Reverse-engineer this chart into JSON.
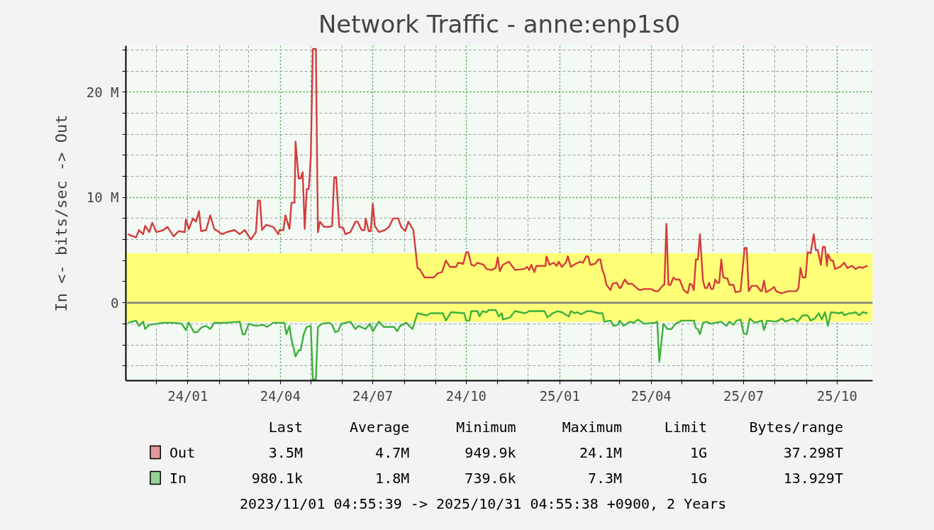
{
  "chart_data": {
    "type": "line",
    "title": "Network Traffic - anne:enp1s0",
    "ylabel": "In <- bits/sec -> Out",
    "xlim": [
      "2023-11-01",
      "2025-11-05"
    ],
    "ylim": [
      -7.4,
      24.4
    ],
    "xticks": [
      {
        "value": "2023-12-01",
        "label": null
      },
      {
        "value": "2024-01-01",
        "label": "24/01"
      },
      {
        "value": "2024-02-01",
        "label": null
      },
      {
        "value": "2024-03-01",
        "label": null
      },
      {
        "value": "2024-04-01",
        "label": "24/04"
      },
      {
        "value": "2024-05-01",
        "label": null
      },
      {
        "value": "2024-06-01",
        "label": null
      },
      {
        "value": "2024-07-01",
        "label": "24/07"
      },
      {
        "value": "2024-08-01",
        "label": null
      },
      {
        "value": "2024-09-01",
        "label": null
      },
      {
        "value": "2024-10-01",
        "label": "24/10"
      },
      {
        "value": "2024-11-01",
        "label": null
      },
      {
        "value": "2024-12-01",
        "label": null
      },
      {
        "value": "2025-01-01",
        "label": "25/01"
      },
      {
        "value": "2025-02-01",
        "label": null
      },
      {
        "value": "2025-03-01",
        "label": null
      },
      {
        "value": "2025-04-01",
        "label": "25/04"
      },
      {
        "value": "2025-05-01",
        "label": null
      },
      {
        "value": "2025-06-01",
        "label": null
      },
      {
        "value": "2025-07-01",
        "label": "25/07"
      },
      {
        "value": "2025-08-01",
        "label": null
      },
      {
        "value": "2025-09-01",
        "label": null
      },
      {
        "value": "2025-10-01",
        "label": "25/10"
      }
    ],
    "yticks": [
      {
        "value": -6,
        "label": null
      },
      {
        "value": -4,
        "label": null
      },
      {
        "value": -2,
        "label": null
      },
      0,
      {
        "value": 2,
        "label": null
      },
      {
        "value": 4,
        "label": null
      },
      {
        "value": 6,
        "label": null
      },
      {
        "value": 8,
        "label": null
      },
      {
        "value": 10,
        "label": "10 M"
      },
      {
        "value": 12,
        "label": null
      },
      {
        "value": 14,
        "label": null
      },
      {
        "value": 16,
        "label": null
      },
      {
        "value": 18,
        "label": null
      },
      {
        "value": 20,
        "label": "20 M"
      },
      {
        "value": 22,
        "label": null
      },
      {
        "value": 24,
        "label": null
      }
    ],
    "grid": true,
    "legend": "bottom",
    "bands": [
      {
        "axis": "y",
        "from": -1.8,
        "to": 4.7,
        "color": "#ffff77"
      }
    ],
    "ref_lines": [
      {
        "axis": "y",
        "value": 0,
        "color": "#808080"
      }
    ],
    "series": [
      {
        "name": "Out",
        "color": "#d43c3c",
        "x": [
          "2023-11-03",
          "2023-11-11",
          "2023-11-14",
          "2023-11-18",
          "2023-11-20",
          "2023-11-24",
          "2023-11-27",
          "2023-12-01",
          "2023-12-08",
          "2023-12-12",
          "2023-12-18",
          "2023-12-23",
          "2023-12-29",
          "2023-12-30",
          "2024-01-02",
          "2024-01-06",
          "2024-01-09",
          "2024-01-12",
          "2024-01-14",
          "2024-01-19",
          "2024-01-23",
          "2024-01-27",
          "2024-02-04",
          "2024-02-08",
          "2024-02-16",
          "2024-02-21",
          "2024-02-26",
          "2024-03-03",
          "2024-03-08",
          "2024-03-10",
          "2024-03-12",
          "2024-03-14",
          "2024-03-18",
          "2024-03-25",
          "2024-03-30",
          "2024-03-31",
          "2024-04-04",
          "2024-04-06",
          "2024-04-10",
          "2024-04-12",
          "2024-04-15",
          "2024-04-16",
          "2024-04-19",
          "2024-04-21",
          "2024-04-23",
          "2024-04-25",
          "2024-04-27",
          "2024-04-29",
          "2024-05-01",
          "2024-05-03",
          "2024-05-06",
          "2024-05-08",
          "2024-05-10",
          "2024-05-14",
          "2024-05-19",
          "2024-05-22",
          "2024-05-24",
          "2024-05-26",
          "2024-05-29",
          "2024-06-02",
          "2024-06-04",
          "2024-06-09",
          "2024-06-14",
          "2024-06-16",
          "2024-06-20",
          "2024-06-23",
          "2024-06-24",
          "2024-06-27",
          "2024-06-29",
          "2024-07-01",
          "2024-07-03",
          "2024-07-07",
          "2024-07-13",
          "2024-07-17",
          "2024-07-21",
          "2024-07-26",
          "2024-07-29",
          "2024-08-02",
          "2024-08-05",
          "2024-08-10",
          "2024-08-14",
          "2024-08-16",
          "2024-08-21",
          "2024-08-30",
          "2024-09-03",
          "2024-09-07",
          "2024-09-11",
          "2024-09-15",
          "2024-09-21",
          "2024-09-23",
          "2024-09-28",
          "2024-10-01",
          "2024-10-03",
          "2024-10-06",
          "2024-10-09",
          "2024-10-12",
          "2024-10-18",
          "2024-10-21",
          "2024-10-26",
          "2024-10-30",
          "2024-11-01",
          "2024-11-03",
          "2024-11-06",
          "2024-11-12",
          "2024-11-18",
          "2024-11-27",
          "2024-11-30",
          "2024-12-02",
          "2024-12-04",
          "2024-12-07",
          "2024-12-09",
          "2024-12-18",
          "2024-12-19",
          "2024-12-22",
          "2024-12-26",
          "2024-12-29",
          "2024-12-31",
          "2025-01-03",
          "2025-01-07",
          "2025-01-09",
          "2025-01-12",
          "2025-01-15",
          "2025-01-17",
          "2025-01-21",
          "2025-01-24",
          "2025-01-27",
          "2025-01-29",
          "2025-01-31",
          "2025-02-05",
          "2025-02-08",
          "2025-02-10",
          "2025-02-12",
          "2025-02-14",
          "2025-02-16",
          "2025-02-20",
          "2025-02-22",
          "2025-02-26",
          "2025-03-01",
          "2025-03-02",
          "2025-03-06",
          "2025-03-09",
          "2025-03-13",
          "2025-03-19",
          "2025-03-21",
          "2025-03-25",
          "2025-04-01",
          "2025-04-05",
          "2025-04-08",
          "2025-04-13",
          "2025-04-14",
          "2025-04-16",
          "2025-04-18",
          "2025-04-20",
          "2025-04-23",
          "2025-04-25",
          "2025-04-29",
          "2025-05-03",
          "2025-05-07",
          "2025-05-09",
          "2025-05-11",
          "2025-05-13",
          "2025-05-15",
          "2025-05-17",
          "2025-05-19",
          "2025-05-22",
          "2025-05-24",
          "2025-05-26",
          "2025-05-28",
          "2025-05-30",
          "2025-06-01",
          "2025-06-03",
          "2025-06-05",
          "2025-06-07",
          "2025-06-09",
          "2025-06-11",
          "2025-06-15",
          "2025-06-17",
          "2025-06-21",
          "2025-06-23",
          "2025-06-28",
          "2025-06-30",
          "2025-07-02",
          "2025-07-04",
          "2025-07-06",
          "2025-07-09",
          "2025-07-14",
          "2025-07-18",
          "2025-07-19",
          "2025-07-21",
          "2025-07-23",
          "2025-07-27",
          "2025-07-31",
          "2025-08-02",
          "2025-08-07",
          "2025-08-14",
          "2025-08-17",
          "2025-08-22",
          "2025-08-24",
          "2025-08-26",
          "2025-08-28",
          "2025-08-31",
          "2025-09-02",
          "2025-09-05",
          "2025-09-08",
          "2025-09-10",
          "2025-09-12",
          "2025-09-15",
          "2025-09-17",
          "2025-09-19",
          "2025-09-21",
          "2025-09-22",
          "2025-09-25",
          "2025-09-27",
          "2025-09-29",
          "2025-10-04",
          "2025-10-08",
          "2025-10-11",
          "2025-10-16",
          "2025-10-19",
          "2025-10-23",
          "2025-10-26",
          "2025-10-28",
          "2025-10-31"
        ],
        "values": [
          6.5,
          6.2,
          6.9,
          6.5,
          7.3,
          6.7,
          7.6,
          6.7,
          6.9,
          7.2,
          6.3,
          6.8,
          6.7,
          7.9,
          7.0,
          8.0,
          7.7,
          8.7,
          6.8,
          6.9,
          8.3,
          7.0,
          6.5,
          6.7,
          6.9,
          6.5,
          6.9,
          6.0,
          6.7,
          9.7,
          9.7,
          6.9,
          7.4,
          7.2,
          6.5,
          6.9,
          6.9,
          8.3,
          7.0,
          9.5,
          9.5,
          15.3,
          11.8,
          11.8,
          12.4,
          7.0,
          10.8,
          10.8,
          13.8,
          24.1,
          24.1,
          6.7,
          7.7,
          7.2,
          7.2,
          7.3,
          11.9,
          11.9,
          7.2,
          7.1,
          6.5,
          6.7,
          7.7,
          7.7,
          6.9,
          6.9,
          8.0,
          6.8,
          6.8,
          9.4,
          7.3,
          6.7,
          6.9,
          7.2,
          8.0,
          8.0,
          7.2,
          6.8,
          7.7,
          6.9,
          3.3,
          3.2,
          2.4,
          2.4,
          2.8,
          2.9,
          4.0,
          3.4,
          3.4,
          3.8,
          3.7,
          4.8,
          4.8,
          3.6,
          3.5,
          3.8,
          3.6,
          3.2,
          3.1,
          3.3,
          4.3,
          3.0,
          3.6,
          3.9,
          3.1,
          3.2,
          3.4,
          3.1,
          3.6,
          2.9,
          3.5,
          3.5,
          4.4,
          3.6,
          3.8,
          3.5,
          3.9,
          3.4,
          3.8,
          4.4,
          3.4,
          3.6,
          3.7,
          3.9,
          3.8,
          4.4,
          4.4,
          3.6,
          3.7,
          4.1,
          4.1,
          3.1,
          2.6,
          1.7,
          1.2,
          1.8,
          1.9,
          1.4,
          1.4,
          2.2,
          1.8,
          1.8,
          1.3,
          1.2,
          1.3,
          1.3,
          1.1,
          1.1,
          1.7,
          1.7,
          7.5,
          1.7,
          1.7,
          2.4,
          2.2,
          2.2,
          1.2,
          0.9,
          1.8,
          1.7,
          1.2,
          4.1,
          4.1,
          6.5,
          2.1,
          1.4,
          1.4,
          1.9,
          1.3,
          1.3,
          2.2,
          1.9,
          1.9,
          4.1,
          2.4,
          2.3,
          1.7,
          1.7,
          1.0,
          1.1,
          3.2,
          5.2,
          5.2,
          1.1,
          1.6,
          1.6,
          1.1,
          1.1,
          2.1,
          1.0,
          1.2,
          1.5,
          1.1,
          0.9,
          1.1,
          1.1,
          1.1,
          1.4,
          3.3,
          2.4,
          2.4,
          4.8,
          4.7,
          6.5,
          5.0,
          5.0,
          3.6,
          5.3,
          5.3,
          3.5,
          4.6,
          4.0,
          4.0,
          3.2,
          3.4,
          3.8,
          3.3,
          3.5,
          3.2,
          3.4,
          3.3,
          3.4,
          3.5
        ]
      },
      {
        "name": "In",
        "color": "#3cb03c",
        "x": [
          "2023-11-03",
          "2023-11-11",
          "2023-11-14",
          "2023-11-18",
          "2023-11-20",
          "2023-11-24",
          "2023-12-01",
          "2023-12-08",
          "2023-12-18",
          "2023-12-26",
          "2023-12-30",
          "2024-01-02",
          "2024-01-07",
          "2024-01-10",
          "2024-01-15",
          "2024-01-19",
          "2024-01-23",
          "2024-01-27",
          "2024-02-08",
          "2024-02-21",
          "2024-02-24",
          "2024-02-26",
          "2024-03-01",
          "2024-03-08",
          "2024-03-15",
          "2024-03-19",
          "2024-03-25",
          "2024-03-31",
          "2024-04-05",
          "2024-04-07",
          "2024-04-10",
          "2024-04-12",
          "2024-04-16",
          "2024-04-19",
          "2024-04-21",
          "2024-04-24",
          "2024-04-27",
          "2024-05-01",
          "2024-05-03",
          "2024-05-06",
          "2024-05-08",
          "2024-05-12",
          "2024-05-19",
          "2024-05-22",
          "2024-05-25",
          "2024-05-28",
          "2024-05-31",
          "2024-06-09",
          "2024-06-14",
          "2024-06-17",
          "2024-06-24",
          "2024-06-28",
          "2024-07-01",
          "2024-07-07",
          "2024-07-12",
          "2024-07-17",
          "2024-07-22",
          "2024-07-25",
          "2024-07-28",
          "2024-08-03",
          "2024-08-09",
          "2024-08-14",
          "2024-08-23",
          "2024-08-27",
          "2024-09-08",
          "2024-09-11",
          "2024-09-16",
          "2024-09-29",
          "2024-10-01",
          "2024-10-04",
          "2024-10-06",
          "2024-10-12",
          "2024-10-14",
          "2024-10-17",
          "2024-10-21",
          "2024-10-23",
          "2024-10-30",
          "2024-11-02",
          "2024-11-05",
          "2024-11-06",
          "2024-11-13",
          "2024-11-18",
          "2024-11-28",
          "2024-12-02",
          "2024-12-17",
          "2024-12-20",
          "2024-12-25",
          "2024-12-30",
          "2025-01-03",
          "2025-01-08",
          "2025-01-10",
          "2025-01-12",
          "2025-01-16",
          "2025-01-18",
          "2025-01-22",
          "2025-01-28",
          "2025-02-01",
          "2025-02-08",
          "2025-02-12",
          "2025-02-14",
          "2025-02-20",
          "2025-02-23",
          "2025-02-27",
          "2025-03-01",
          "2025-03-05",
          "2025-03-11",
          "2025-03-15",
          "2025-03-19",
          "2025-03-25",
          "2025-04-05",
          "2025-04-07",
          "2025-04-09",
          "2025-04-13",
          "2025-04-17",
          "2025-04-21",
          "2025-04-25",
          "2025-05-01",
          "2025-05-13",
          "2025-05-15",
          "2025-05-17",
          "2025-05-19",
          "2025-05-22",
          "2025-05-26",
          "2025-05-29",
          "2025-06-09",
          "2025-06-14",
          "2025-06-17",
          "2025-06-21",
          "2025-06-24",
          "2025-06-28",
          "2025-07-01",
          "2025-07-04",
          "2025-07-07",
          "2025-07-12",
          "2025-07-19",
          "2025-07-21",
          "2025-07-24",
          "2025-08-02",
          "2025-08-08",
          "2025-08-11",
          "2025-08-19",
          "2025-08-23",
          "2025-08-28",
          "2025-09-02",
          "2025-09-05",
          "2025-09-09",
          "2025-09-13",
          "2025-09-16",
          "2025-09-19",
          "2025-09-22",
          "2025-09-25",
          "2025-10-03",
          "2025-10-06",
          "2025-10-08",
          "2025-10-13",
          "2025-10-16",
          "2025-10-19",
          "2025-10-23",
          "2025-10-26",
          "2025-10-31"
        ],
        "values": [
          -1.9,
          -1.7,
          -2.2,
          -1.8,
          -2.5,
          -2.1,
          -2.0,
          -1.9,
          -1.9,
          -2.0,
          -2.6,
          -1.9,
          -2.8,
          -2.8,
          -2.3,
          -2.2,
          -2.5,
          -1.9,
          -1.9,
          -1.8,
          -3.0,
          -3.0,
          -2.0,
          -2.2,
          -2.1,
          -2.3,
          -1.9,
          -1.9,
          -1.9,
          -3.0,
          -2.2,
          -3.5,
          -5.1,
          -4.5,
          -4.5,
          -3.0,
          -2.3,
          -2.2,
          -7.3,
          -7.3,
          -2.3,
          -2.0,
          -1.9,
          -2.1,
          -2.8,
          -2.7,
          -2.0,
          -1.8,
          -2.5,
          -2.2,
          -2.5,
          -2.0,
          -2.7,
          -1.8,
          -2.3,
          -2.3,
          -2.3,
          -2.7,
          -2.2,
          -1.9,
          -2.5,
          -1.0,
          -1.2,
          -1.0,
          -1.0,
          -1.7,
          -0.9,
          -1.0,
          -1.7,
          -1.7,
          -0.8,
          -0.8,
          -1.3,
          -0.8,
          -0.9,
          -0.7,
          -0.7,
          -1.3,
          -1.0,
          -1.6,
          -1.4,
          -0.8,
          -1.0,
          -0.8,
          -0.8,
          -1.4,
          -1.0,
          -0.8,
          -0.9,
          -1.2,
          -1.3,
          -0.8,
          -1.0,
          -0.9,
          -1.1,
          -0.8,
          -0.8,
          -1.0,
          -1.0,
          -1.8,
          -1.7,
          -2.2,
          -2.1,
          -1.7,
          -2.2,
          -1.8,
          -1.9,
          -1.6,
          -2.0,
          -1.9,
          -1.8,
          -5.6,
          -2.0,
          -2.5,
          -2.5,
          -2.0,
          -1.7,
          -1.7,
          -2.4,
          -2.5,
          -3.0,
          -1.9,
          -1.8,
          -2.0,
          -1.8,
          -2.2,
          -1.8,
          -2.1,
          -1.7,
          -1.6,
          -2.9,
          -3.0,
          -1.5,
          -1.9,
          -1.7,
          -2.6,
          -1.7,
          -1.8,
          -1.5,
          -1.8,
          -1.5,
          -1.8,
          -1.2,
          -1.2,
          -1.7,
          -1.5,
          -1.0,
          -1.6,
          -0.9,
          -2.2,
          -0.9,
          -1.0,
          -0.9,
          -1.2,
          -1.0,
          -1.0,
          -0.9,
          -1.2,
          -0.9,
          -1.0
        ]
      }
    ],
    "annotations": [
      "Last",
      "Average",
      "Minimum",
      "Maximum",
      "Limit",
      "Bytes/range",
      "3.5M",
      "4.7M",
      "949.9k",
      "24.1M",
      "1G",
      "37.298T",
      "980.1k",
      "1.8M",
      "739.6k",
      "7.3M",
      "1G",
      "13.929T",
      "2023/11/01 04:55:39 -> 2025/10/31 04:55:38 +0900, 2 Years"
    ]
  }
}
